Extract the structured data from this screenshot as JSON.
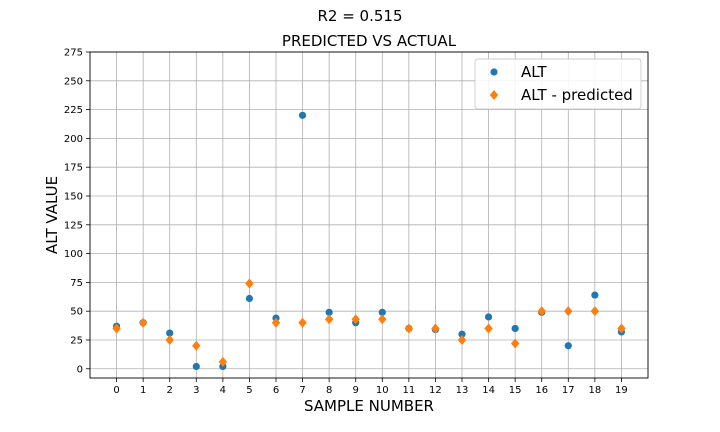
{
  "chart_data": {
    "type": "scatter",
    "suptitle": "R2 = 0.515",
    "title": "PREDICTED VS ACTUAL",
    "xlabel": "SAMPLE NUMBER",
    "ylabel": "ALT  VALUE",
    "x": [
      0,
      1,
      2,
      3,
      4,
      5,
      6,
      7,
      8,
      9,
      10,
      11,
      12,
      13,
      14,
      15,
      16,
      17,
      18,
      19
    ],
    "x_tick_labels": [
      "0",
      "1",
      "2",
      "3",
      "4",
      "5",
      "6",
      "7",
      "8",
      "9",
      "10",
      "11",
      "12",
      "13",
      "14",
      "15",
      "16",
      "17",
      "18",
      "19"
    ],
    "xlim": [
      -1,
      20
    ],
    "ylim": [
      -8,
      275
    ],
    "y_ticks": [
      0,
      25,
      50,
      75,
      100,
      125,
      150,
      175,
      200,
      225,
      250,
      275
    ],
    "grid": true,
    "legend_position": "top-right",
    "series": [
      {
        "name": "ALT",
        "marker": "circle",
        "color": "#1f77b4",
        "values": [
          37,
          40,
          31,
          2,
          2,
          61,
          44,
          220,
          49,
          40,
          49,
          35,
          34,
          30,
          45,
          35,
          49,
          20,
          64,
          32
        ]
      },
      {
        "name": "ALT - predicted",
        "marker": "diamond",
        "color": "#ff7f0e",
        "values": [
          35,
          40,
          25,
          20,
          6,
          74,
          40,
          40,
          43,
          43,
          43,
          35,
          35,
          25,
          35,
          22,
          50,
          50,
          50,
          35
        ]
      }
    ]
  }
}
